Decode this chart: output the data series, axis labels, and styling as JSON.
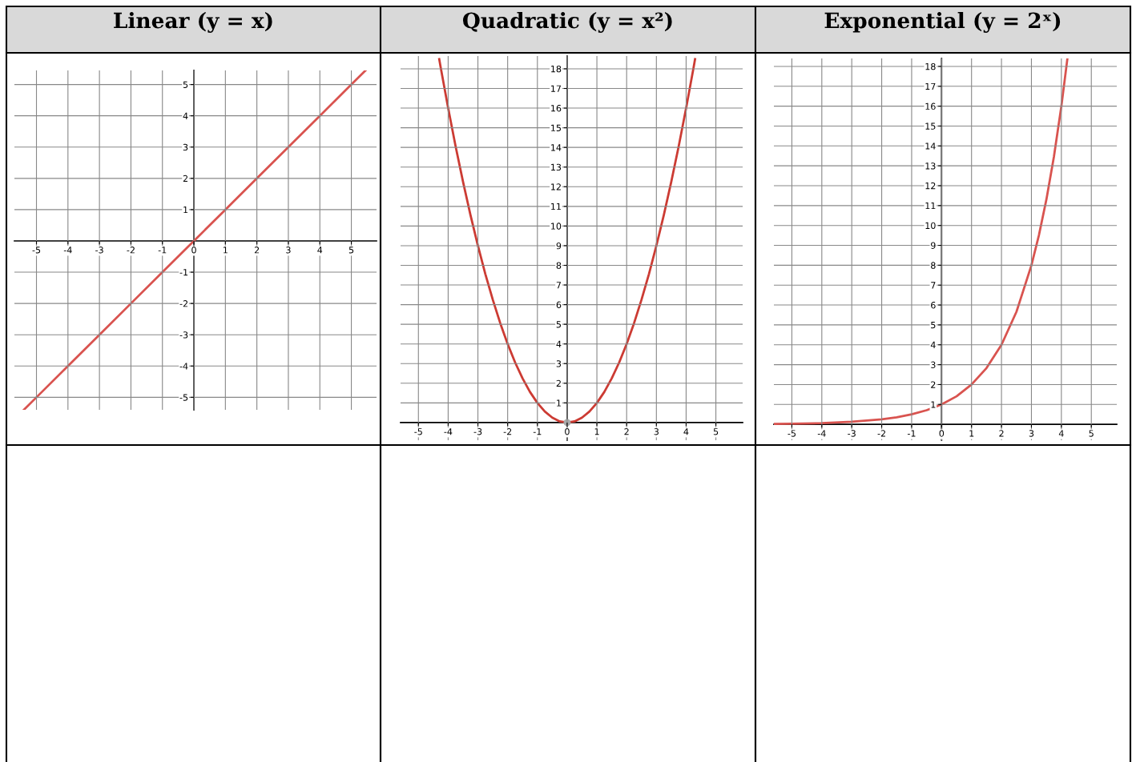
{
  "chart_data": [
    {
      "type": "line",
      "title": "Linear (y = x)",
      "x": [
        -5.4,
        -5,
        -4,
        -3,
        -2,
        -1,
        0,
        1,
        2,
        3,
        4,
        5,
        5.45
      ],
      "series": [
        {
          "color": "#d9534f",
          "values": [
            -5.4,
            -5,
            -4,
            -3,
            -2,
            -1,
            0,
            1,
            2,
            3,
            4,
            5,
            5.45
          ]
        }
      ],
      "xlim": [
        -5.7,
        5.8
      ],
      "ylim": [
        -5.4,
        5.45
      ],
      "xticks": [
        -5,
        -4,
        -3,
        -2,
        -1,
        0,
        1,
        2,
        3,
        4,
        5
      ],
      "yticks": [
        -5,
        -4,
        -3,
        -2,
        -1,
        1,
        2,
        3,
        4,
        5
      ],
      "grid": true,
      "line_style": "solid",
      "marker": "none"
    },
    {
      "type": "line",
      "title": "Quadratic (y = x²)",
      "x": [
        -4.3,
        -4.25,
        -4,
        -3.75,
        -3.5,
        -3.25,
        -3,
        -2.75,
        -2.5,
        -2.25,
        -2,
        -1.75,
        -1.5,
        -1.25,
        -1,
        -0.75,
        -0.5,
        -0.25,
        0,
        0.25,
        0.5,
        0.75,
        1,
        1.25,
        1.5,
        1.75,
        2,
        2.25,
        2.5,
        2.75,
        3,
        3.25,
        3.5,
        3.75,
        4,
        4.25,
        4.3
      ],
      "series": [
        {
          "color": "#cc3b33",
          "values": [
            18.49,
            18.06,
            16,
            14.06,
            12.25,
            10.56,
            9,
            7.56,
            6.25,
            5.06,
            4,
            3.06,
            2.25,
            1.56,
            1,
            0.56,
            0.25,
            0.06,
            0,
            0.06,
            0.25,
            0.56,
            1,
            1.56,
            2.25,
            3.06,
            4,
            5.06,
            6.25,
            7.56,
            9,
            10.56,
            12.25,
            14.06,
            16,
            18.06,
            18.49
          ]
        },
        {
          "type": "scatter",
          "x": [
            0
          ],
          "color": "#aaaaaa",
          "values": [
            0
          ],
          "marker": "circle"
        }
      ],
      "xlim": [
        -5.6,
        5.9
      ],
      "ylim": [
        -0.9,
        18.65
      ],
      "xticks": [
        -5,
        -4,
        -3,
        -2,
        -1,
        0,
        1,
        2,
        3,
        4,
        5
      ],
      "yticks": [
        1,
        2,
        3,
        4,
        5,
        6,
        7,
        8,
        9,
        10,
        11,
        12,
        13,
        14,
        15,
        16,
        17,
        18
      ],
      "grid": true,
      "line_style": "solid",
      "marker": "none"
    },
    {
      "type": "line",
      "title": "Exponential (y = 2ˣ)",
      "x": [
        -5.6,
        -5,
        -4,
        -3,
        -2,
        -1.5,
        -1,
        -0.5,
        0,
        0.5,
        1,
        1.5,
        2,
        2.5,
        3,
        3.25,
        3.5,
        3.75,
        4,
        4.2
      ],
      "series": [
        {
          "color": "#d9534f",
          "values": [
            0.02,
            0.03,
            0.06,
            0.13,
            0.25,
            0.35,
            0.5,
            0.71,
            1,
            1.41,
            2,
            2.83,
            4,
            5.66,
            8,
            9.51,
            11.31,
            13.45,
            16,
            18.38
          ]
        }
      ],
      "xlim": [
        -5.6,
        5.85
      ],
      "ylim": [
        -0.8,
        18.4
      ],
      "xticks": [
        -5,
        -4,
        -3,
        -2,
        -1,
        0,
        1,
        2,
        3,
        4,
        5
      ],
      "yticks": [
        1,
        2,
        3,
        4,
        5,
        6,
        7,
        8,
        9,
        10,
        11,
        12,
        13,
        14,
        15,
        16,
        17,
        18
      ],
      "grid": true,
      "line_style": "solid",
      "marker": "none"
    }
  ]
}
